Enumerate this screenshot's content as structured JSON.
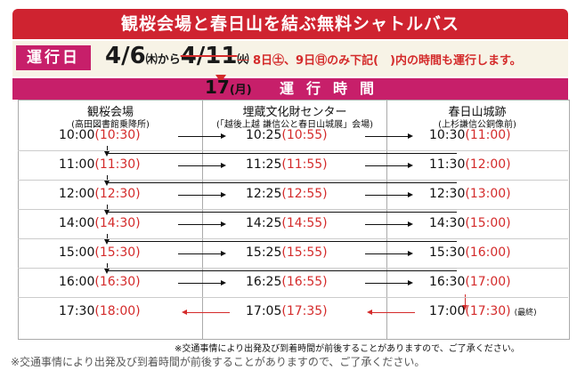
{
  "banner": {
    "title": "観桜会場と春日山を結ぶ無料シャトルバス"
  },
  "operation": {
    "badge": "運行日",
    "date_start": "4/6",
    "date_start_day": "㈭",
    "from": "から",
    "date_end": "4/11",
    "date_end_day": "㈫",
    "note": "8日㊏、9日㊐のみ下記(　)内の時間も運行します。",
    "new_end": "17",
    "new_end_day": "(月)"
  },
  "hours_bar": {
    "label": "運行時間"
  },
  "stops": [
    {
      "name": "観桜会場",
      "sub": "(高田図書館乗降所)"
    },
    {
      "name": "埋蔵文化財センター",
      "sub": "(「越後上越 謙信公と春日山城展」会場)"
    },
    {
      "name": "春日山城跡",
      "sub": "(上杉謙信公銅像前)"
    }
  ],
  "timetable": [
    [
      "10:00",
      "(10:30)",
      "10:25",
      "(10:55)",
      "10:30",
      "(11:00)"
    ],
    [
      "11:00",
      "(11:30)",
      "11:25",
      "(11:55)",
      "11:30",
      "(12:00)"
    ],
    [
      "12:00",
      "(12:30)",
      "12:25",
      "(12:55)",
      "12:30",
      "(13:00)"
    ],
    [
      "14:00",
      "(14:30)",
      "14:25",
      "(14:55)",
      "14:30",
      "(15:00)"
    ],
    [
      "15:00",
      "(15:30)",
      "15:25",
      "(15:55)",
      "15:30",
      "(16:00)"
    ],
    [
      "16:00",
      "(16:30)",
      "16:25",
      "(16:55)",
      "16:30",
      "(17:00)"
    ],
    [
      "17:30",
      "(18:00)",
      "17:05",
      "(17:35)",
      "17:00",
      "(17:30)"
    ]
  ],
  "final_note": "(最終)",
  "small_note": "※交通事情により出発及び到着時間が前後することがありますので、ご了承ください。",
  "footer": "※交通事情により出発及び到着時間が前後することがありますので、ご了承ください。",
  "colors": {
    "banner": "#cf2330",
    "accent": "#c71f6a",
    "alt_time": "#d42b2b"
  }
}
